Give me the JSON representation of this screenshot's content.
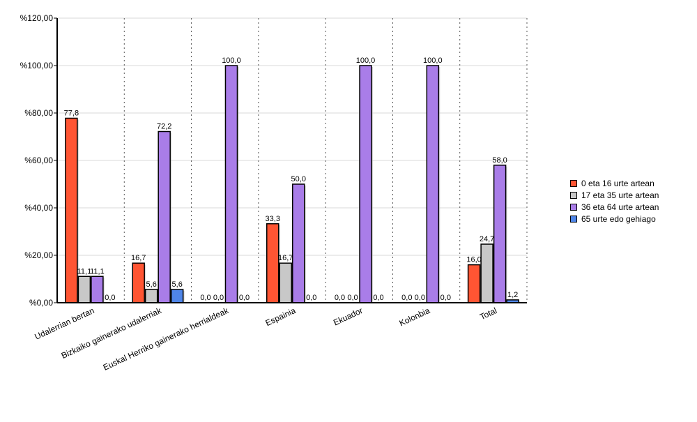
{
  "chart_data": {
    "type": "bar",
    "categories": [
      "Udalerrian bertan",
      "Bizkaiko gainerako udalerriak",
      "Euskal Herriko gainerako herrialdeak",
      "Espainia",
      "Ekuador",
      "Kolonbia",
      "Total"
    ],
    "series": [
      {
        "name": "0 eta 16 urte artean",
        "color": "#ff5533",
        "values": [
          77.8,
          16.7,
          0.0,
          33.3,
          0.0,
          0.0,
          16.0
        ],
        "labels": [
          "77,8",
          "16,7",
          "0,0",
          "33,3",
          "0,0",
          "0,0",
          "16,0"
        ]
      },
      {
        "name": "17 eta 35 urte artean",
        "color": "#c8c8c8",
        "values": [
          11.1,
          5.6,
          0.0,
          16.7,
          0.0,
          0.0,
          24.7
        ],
        "labels": [
          "11,1",
          "5,6",
          "0,0",
          "16,7",
          "0,0",
          "0,0",
          "24,7"
        ]
      },
      {
        "name": "36 eta 64 urte artean",
        "color": "#a97de8",
        "values": [
          11.1,
          72.2,
          100.0,
          50.0,
          100.0,
          100.0,
          58.0
        ],
        "labels": [
          "11,1",
          "72,2",
          "100,0",
          "50,0",
          "100,0",
          "100,0",
          "58,0"
        ]
      },
      {
        "name": "65 urte edo gehiago",
        "color": "#4f86e8",
        "values": [
          0.0,
          5.6,
          0.0,
          0.0,
          0.0,
          0.0,
          1.2
        ],
        "labels": [
          "0,0",
          "5,6",
          "0,0",
          "0,0",
          "0,0",
          "0,0",
          "1,2"
        ]
      }
    ],
    "yticks": [
      0,
      20,
      40,
      60,
      80,
      100,
      120
    ],
    "ytick_labels": [
      "%0,00",
      "%20,00",
      "%40,00",
      "%60,00",
      "%80,00",
      "%100,00",
      "%120,00"
    ],
    "ylim": [
      0,
      120
    ],
    "grid": true,
    "legend_position": "right"
  }
}
